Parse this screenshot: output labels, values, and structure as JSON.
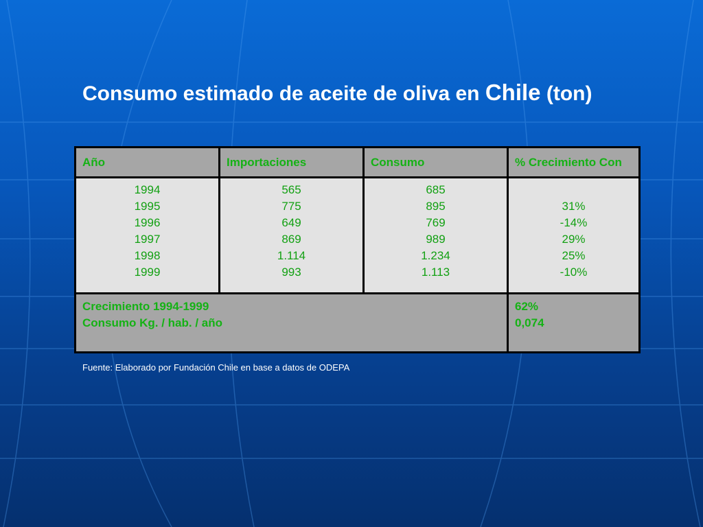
{
  "title": {
    "part1": "Consumo estimado de aceite de oliva en ",
    "part2": "Chile",
    "part3": " (ton)"
  },
  "table": {
    "headers": [
      "Año",
      "Importaciones",
      "Consumo",
      "% Crecimiento Con"
    ],
    "years": [
      "1994",
      "1995",
      "1996",
      "1997",
      "1998",
      "1999"
    ],
    "importaciones": [
      "565",
      "775",
      "649",
      "869",
      "1.114",
      "993"
    ],
    "consumo": [
      "685",
      "895",
      "769",
      "989",
      "1.234",
      "1.113"
    ],
    "crecimiento": [
      "",
      "31%",
      "-14%",
      "29%",
      "25%",
      "-10%"
    ],
    "footer": {
      "label1": "Crecimiento 1994-1999",
      "label2": "Consumo Kg. / hab. / año",
      "value1": "62%",
      "value2": "0,074"
    }
  },
  "source": "Fuente: Elaborado por Fundación Chile en base a datos de ODEPA",
  "colors": {
    "header_bg": "#a6a6a6",
    "body_bg": "#e3e3e3",
    "text_green": "#15b215",
    "background_blue": "#0757bb"
  }
}
